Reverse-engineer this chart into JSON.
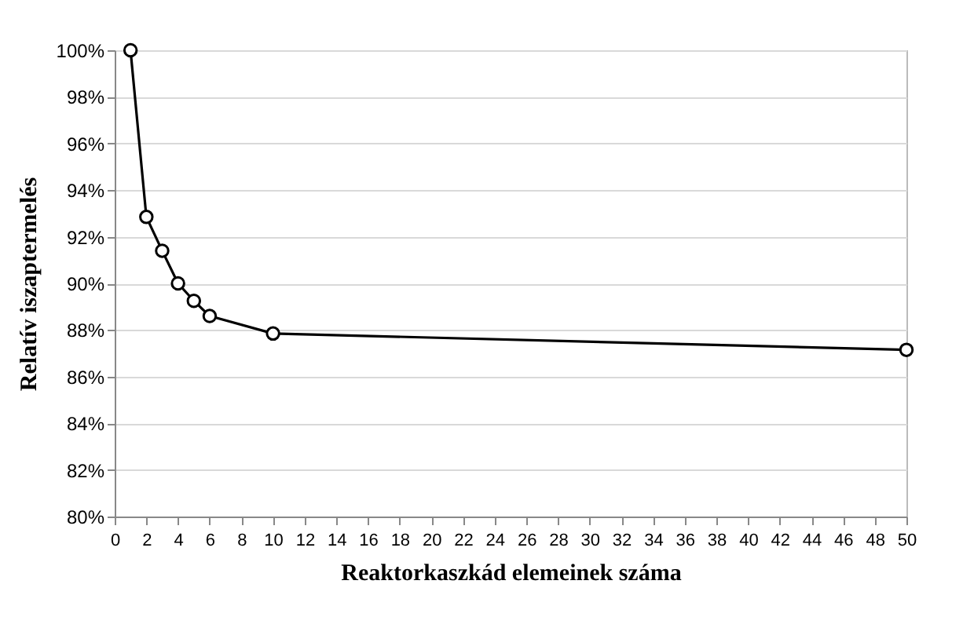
{
  "chart_data": {
    "type": "line",
    "xlabel": "Reaktorkaszkád elemeinek száma",
    "ylabel": "Relatív iszaptermelés",
    "x": [
      1,
      2,
      3,
      4,
      5,
      6,
      10,
      50
    ],
    "series": [
      {
        "color": "#000000",
        "values": [
          100,
          92.85,
          91.4,
          90.0,
          89.25,
          88.6,
          87.85,
          87.15
        ]
      }
    ],
    "xlim": [
      0,
      50
    ],
    "xticks": [
      0,
      2,
      4,
      6,
      8,
      10,
      12,
      14,
      16,
      18,
      20,
      22,
      24,
      26,
      28,
      30,
      32,
      34,
      36,
      38,
      40,
      42,
      44,
      46,
      48,
      50
    ],
    "ylim": [
      80,
      100
    ],
    "yticks": [
      {
        "value": 80,
        "label": "80%"
      },
      {
        "value": 82,
        "label": "82%"
      },
      {
        "value": 84,
        "label": "84%"
      },
      {
        "value": 86,
        "label": "86%"
      },
      {
        "value": 88,
        "label": "88%"
      },
      {
        "value": 90,
        "label": "90%"
      },
      {
        "value": 92,
        "label": "92%"
      },
      {
        "value": 94,
        "label": "94%"
      },
      {
        "value": 96,
        "label": "96%"
      },
      {
        "value": 98,
        "label": "98%"
      },
      {
        "value": 100,
        "label": "100%"
      }
    ],
    "grid": "y",
    "marker": "circle",
    "line_style": "solid"
  }
}
